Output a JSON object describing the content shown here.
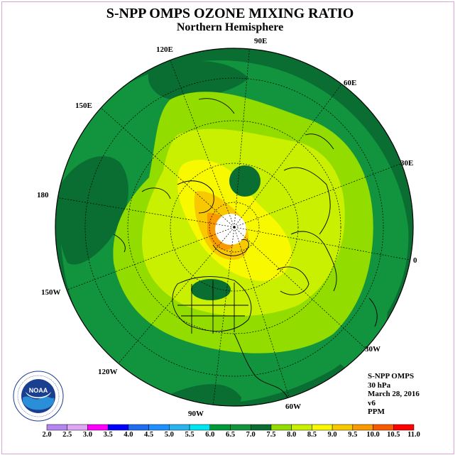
{
  "title": "S-NPP OMPS OZONE MIXING RATIO",
  "subtitle": "Northern Hemisphere",
  "longitude_labels": [
    "90E",
    "60E",
    "30E",
    "0",
    "30W",
    "60W",
    "90W",
    "120W",
    "150W",
    "180",
    "150E",
    "120E"
  ],
  "info": {
    "instrument": "S-NPP OMPS",
    "level": "30 hPa",
    "date": "March 28, 2016",
    "version": "v6",
    "units": "PPM"
  },
  "colorbar": {
    "ticks": [
      "2.0",
      "2.5",
      "3.0",
      "3.5",
      "4.0",
      "4.5",
      "5.0",
      "5.5",
      "6.0",
      "6.5",
      "7.0",
      "7.5",
      "8.0",
      "8.5",
      "9.0",
      "9.5",
      "10.0",
      "10.5",
      "11.0"
    ],
    "colors": [
      "#b486f0",
      "#e0a6f4",
      "#ff00ff",
      "#0000ff",
      "#1e6cf0",
      "#1e90ff",
      "#27b4f0",
      "#00e6f0",
      "#009a3a",
      "#12943e",
      "#0a6e32",
      "#92dc00",
      "#c8f000",
      "#f8f800",
      "#f8c800",
      "#f89a00",
      "#f85a00",
      "#ff0000",
      "#8b4a2c"
    ]
  },
  "logo": {
    "name": "noaa-logo",
    "text": "NOAA",
    "ring_text": "NATIONAL OCEANIC AND ATMOSPHERIC ADMINISTRATION · U.S. DEPARTMENT OF COMMERCE"
  },
  "colors": {
    "frame": "#d8a6d8",
    "band_6_5": "#12943e",
    "band_7_0": "#0a6e32",
    "band_7_5": "#92dc00",
    "band_8_0": "#c8f000",
    "band_8_5": "#f8f800",
    "band_9_0": "#f8c800",
    "band_9_5": "#f89a00"
  }
}
